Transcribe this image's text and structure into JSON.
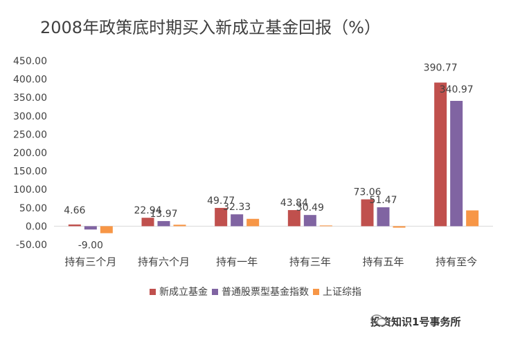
{
  "chart_data": {
    "type": "bar",
    "title": "2008年政策底时期买入新成立基金回报（%）",
    "categories": [
      "持有三个月",
      "持有六个月",
      "持有一年",
      "持有三年",
      "持有五年",
      "持有至今"
    ],
    "series": [
      {
        "name": "新成立基金",
        "color": "#C0504D",
        "values": [
          4.66,
          22.94,
          49.77,
          43.84,
          73.06,
          390.77
        ]
      },
      {
        "name": "普通股票型基金指数",
        "color": "#8064A2",
        "values": [
          -9.0,
          13.97,
          32.33,
          30.49,
          51.47,
          340.97
        ]
      },
      {
        "name": "上证综指",
        "color": "#F79646",
        "values": [
          -19.0,
          4.0,
          20.0,
          2.0,
          -4.0,
          43.0
        ]
      }
    ],
    "data_labels": [
      {
        "series": 0,
        "index": 0,
        "text": "4.66"
      },
      {
        "series": 1,
        "index": 0,
        "text": "-9.00"
      },
      {
        "series": 0,
        "index": 1,
        "text": "22.94"
      },
      {
        "series": 1,
        "index": 1,
        "text": "13.97"
      },
      {
        "series": 0,
        "index": 2,
        "text": "49.77"
      },
      {
        "series": 1,
        "index": 2,
        "text": "32.33"
      },
      {
        "series": 0,
        "index": 3,
        "text": "43.84"
      },
      {
        "series": 1,
        "index": 3,
        "text": "30.49"
      },
      {
        "series": 0,
        "index": 4,
        "text": "73.06"
      },
      {
        "series": 1,
        "index": 4,
        "text": "51.47"
      },
      {
        "series": 0,
        "index": 5,
        "text": "390.77"
      },
      {
        "series": 1,
        "index": 5,
        "text": "340.97"
      }
    ],
    "yticks": [
      "-50.00",
      "0.00",
      "50.00",
      "100.00",
      "150.00",
      "200.00",
      "250.00",
      "300.00",
      "350.00",
      "400.00",
      "450.00"
    ],
    "ylim": [
      -50,
      450
    ],
    "grid": false,
    "legend": "bottom"
  },
  "watermark": {
    "icon": "wechat-icon",
    "text": "投资知识1号事务所"
  }
}
